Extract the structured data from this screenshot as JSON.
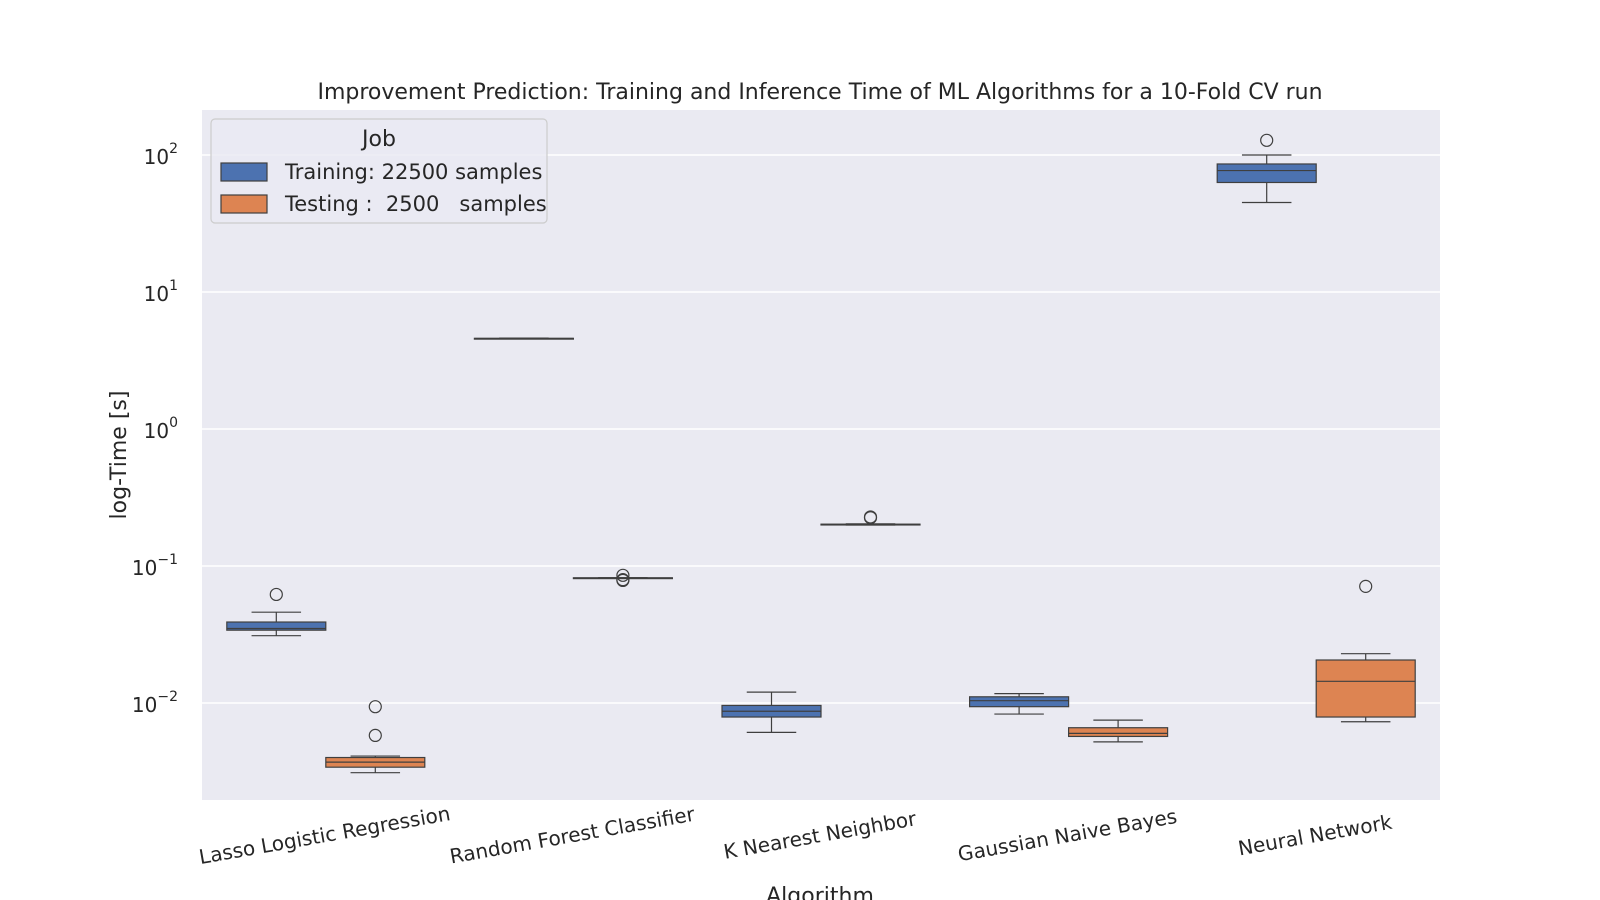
{
  "chart_data": {
    "type": "box",
    "title": "Improvement Prediction: Training and Inference Time of ML Algorithms for a 10-Fold CV run",
    "xlabel": "Algorithm",
    "ylabel": "log-Time [s]",
    "yscale": "log",
    "ylim": [
      0.0025,
      200
    ],
    "yticks": [
      {
        "value": 0.01,
        "base": "10",
        "exp": "−2"
      },
      {
        "value": 0.1,
        "base": "10",
        "exp": "−1"
      },
      {
        "value": 1,
        "base": "10",
        "exp": "0"
      },
      {
        "value": 10,
        "base": "10",
        "exp": "1"
      },
      {
        "value": 100,
        "base": "10",
        "exp": "2"
      }
    ],
    "grid": true,
    "legend_position": "top-left",
    "legend_title": "Job",
    "categories": [
      "Lasso Logistic Regression",
      "Random Forest Classifier",
      "K Nearest Neighbor",
      "Gaussian Naive Bayes",
      "Neural Network"
    ],
    "series": [
      {
        "name": "Training: 22500 samples",
        "color": "#4c72b0",
        "boxes": [
          {
            "min": 0.031,
            "q1": 0.034,
            "median": 0.035,
            "q3": 0.039,
            "max": 0.046,
            "outliers": [
              0.062
            ]
          },
          {
            "min": 4.55,
            "q1": 4.57,
            "median": 4.58,
            "q3": 4.59,
            "max": 4.61,
            "outliers": []
          },
          {
            "min": 0.0061,
            "q1": 0.0079,
            "median": 0.0087,
            "q3": 0.0096,
            "max": 0.012,
            "outliers": []
          },
          {
            "min": 0.0083,
            "q1": 0.0094,
            "median": 0.0104,
            "q3": 0.0111,
            "max": 0.0117,
            "outliers": []
          },
          {
            "min": 45,
            "q1": 63,
            "median": 77,
            "q3": 86,
            "max": 100,
            "outliers": [
              128
            ]
          }
        ]
      },
      {
        "name": "Testing :  2500   samples",
        "color": "#dd8452",
        "boxes": [
          {
            "min": 0.0031,
            "q1": 0.0034,
            "median": 0.0037,
            "q3": 0.004,
            "max": 0.0041,
            "outliers": [
              0.0058,
              0.0094
            ]
          },
          {
            "min": 0.0812,
            "q1": 0.0815,
            "median": 0.0818,
            "q3": 0.082,
            "max": 0.0822,
            "outliers": [
              0.0785,
              0.0795,
              0.0855
            ]
          },
          {
            "min": 0.199,
            "q1": 0.2,
            "median": 0.201,
            "q3": 0.202,
            "max": 0.203,
            "outliers": [
              0.225,
              0.228
            ]
          },
          {
            "min": 0.0052,
            "q1": 0.0057,
            "median": 0.006,
            "q3": 0.0066,
            "max": 0.0075,
            "outliers": []
          },
          {
            "min": 0.0073,
            "q1": 0.0079,
            "median": 0.0144,
            "q3": 0.0206,
            "max": 0.0229,
            "outliers": [
              0.071
            ]
          }
        ]
      }
    ]
  }
}
